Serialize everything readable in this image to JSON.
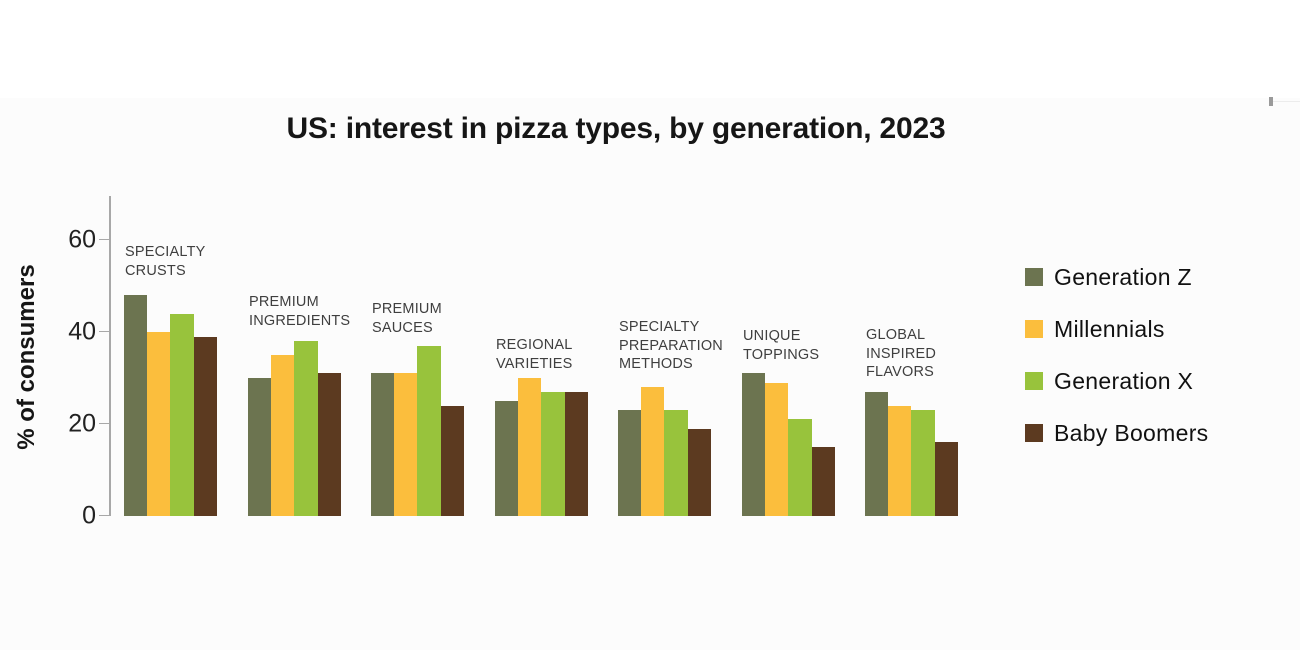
{
  "chart_data": {
    "type": "bar",
    "title": "US: interest in pizza types, by generation, 2023",
    "xlabel": "",
    "ylabel": "% of consumers",
    "ylim": [
      0,
      65
    ],
    "yticks": [
      0,
      20,
      40,
      60
    ],
    "grid": false,
    "legend_position": "right",
    "categories": [
      "Specialty Crusts",
      "Premium Ingredients",
      "Premium Sauces",
      "Regional Varieties",
      "Specialty Preparation Methods",
      "Unique Toppings",
      "Global Inspired Flavors"
    ],
    "category_label_lines": [
      [
        "SPECIALTY",
        "CRUSTS"
      ],
      [
        "PREMIUM",
        "INGREDIENTS"
      ],
      [
        "PREMIUM",
        "SAUCES"
      ],
      [
        "REGIONAL",
        "VARIETIES"
      ],
      [
        "SPECIALTY",
        "PREPARATION",
        "METHODS"
      ],
      [
        "UNIQUE",
        "TOPPINGS"
      ],
      [
        "GLOBAL",
        "INSPIRED",
        "FLAVORS"
      ]
    ],
    "series": [
      {
        "name": "Generation Z",
        "color": "#6C7450",
        "values": [
          48,
          30,
          31,
          25,
          23,
          31,
          27
        ]
      },
      {
        "name": "Millennials",
        "color": "#FBBE3D",
        "values": [
          40,
          35,
          31,
          30,
          28,
          29,
          24
        ]
      },
      {
        "name": "Generation X",
        "color": "#98C33C",
        "values": [
          44,
          38,
          37,
          27,
          23,
          21,
          23
        ]
      },
      {
        "name": "Baby Boomers",
        "color": "#5C3A20",
        "values": [
          39,
          31,
          24,
          27,
          19,
          15,
          16
        ]
      }
    ]
  },
  "colors": {
    "axis": "#a8a8a8",
    "title_text": "#161616",
    "tick_label_text": "#222222",
    "category_label_text": "#3f3f3f",
    "legend_text": "#111111",
    "background_top": "#ffffff",
    "background_main": "#fcfcfc"
  }
}
